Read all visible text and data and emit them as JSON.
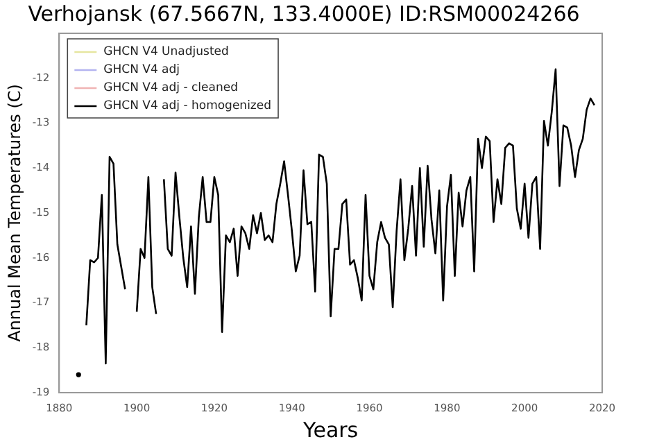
{
  "chart_data": {
    "type": "line",
    "title": "Verhojansk (67.5667N, 133.4000E) ID:RSM00024266",
    "xlabel": "Years",
    "ylabel": "Annual Mean Temperatures (C)",
    "x": [
      1885,
      1886,
      1887,
      1888,
      1889,
      1890,
      1891,
      1892,
      1893,
      1894,
      1895,
      1896,
      1897,
      1898,
      1899,
      1900,
      1901,
      1902,
      1903,
      1904,
      1905,
      1906,
      1907,
      1908,
      1909,
      1910,
      1911,
      1912,
      1913,
      1914,
      1915,
      1916,
      1917,
      1918,
      1919,
      1920,
      1921,
      1922,
      1923,
      1924,
      1925,
      1926,
      1927,
      1928,
      1929,
      1930,
      1931,
      1932,
      1933,
      1934,
      1935,
      1936,
      1937,
      1938,
      1939,
      1940,
      1941,
      1942,
      1943,
      1944,
      1945,
      1946,
      1947,
      1948,
      1949,
      1950,
      1951,
      1952,
      1953,
      1954,
      1955,
      1956,
      1957,
      1958,
      1959,
      1960,
      1961,
      1962,
      1963,
      1964,
      1965,
      1966,
      1967,
      1968,
      1969,
      1970,
      1971,
      1972,
      1973,
      1974,
      1975,
      1976,
      1977,
      1978,
      1979,
      1980,
      1981,
      1982,
      1983,
      1984,
      1985,
      1986,
      1987,
      1988,
      1989,
      1990,
      1991,
      1992,
      1993,
      1994,
      1995,
      1996,
      1997,
      1998,
      1999,
      2000,
      2001,
      2002,
      2003,
      2004,
      2005,
      2006,
      2007,
      2008,
      2009,
      2010,
      2011,
      2012,
      2013,
      2014,
      2015,
      2016,
      2017,
      2018
    ],
    "series": [
      {
        "name": "GHCN V4 Unadjusted",
        "color": "#e6e6a0",
        "values": [
          null,
          null,
          null,
          null,
          null,
          null,
          null,
          null,
          null,
          null,
          null,
          null,
          null,
          null,
          null,
          null,
          null,
          null,
          null,
          null,
          null,
          null,
          null,
          null,
          null,
          null,
          null,
          null,
          null,
          null,
          null,
          null,
          null,
          null,
          null,
          null,
          null,
          null,
          null,
          null,
          null,
          null,
          null,
          null,
          null,
          null,
          null,
          null,
          null,
          null,
          null,
          null,
          null,
          null,
          null,
          null,
          null,
          null,
          null,
          null,
          null,
          null,
          null,
          null,
          null,
          null,
          null,
          null,
          null,
          null,
          null,
          null,
          null,
          null,
          null,
          null,
          null,
          null,
          null,
          null,
          null,
          null,
          null,
          null,
          null,
          null,
          null,
          null,
          null,
          null,
          null,
          null,
          null,
          null,
          null,
          null,
          null,
          null,
          null,
          null,
          null,
          null,
          null,
          null,
          null,
          null,
          null,
          null,
          null,
          null,
          null,
          null,
          null,
          null,
          null,
          null,
          null,
          null,
          null,
          null,
          null,
          null,
          null,
          null,
          null,
          null,
          null,
          null,
          null,
          null,
          null,
          null,
          null,
          null
        ]
      },
      {
        "name": "GHCN V4 adj",
        "color": "#b4b4f0",
        "values": [
          null,
          null,
          null,
          null,
          null,
          null,
          null,
          null,
          null,
          null,
          null,
          null,
          null,
          null,
          null,
          null,
          null,
          null,
          null,
          null,
          null,
          null,
          null,
          null,
          null,
          null,
          null,
          null,
          null,
          null,
          null,
          null,
          null,
          null,
          null,
          null,
          null,
          null,
          null,
          null,
          null,
          null,
          null,
          null,
          null,
          null,
          null,
          null,
          null,
          null,
          null,
          null,
          null,
          null,
          null,
          null,
          null,
          null,
          null,
          null,
          null,
          null,
          null,
          null,
          null,
          null,
          null,
          null,
          null,
          null,
          null,
          null,
          null,
          null,
          null,
          null,
          null,
          null,
          null,
          null,
          null,
          null,
          null,
          null,
          null,
          null,
          null,
          null,
          null,
          null,
          null,
          null,
          null,
          null,
          null,
          null,
          null,
          null,
          null,
          null,
          null,
          null,
          null,
          null,
          null,
          null,
          null,
          null,
          null,
          null,
          null,
          null,
          null,
          null,
          null,
          null,
          null,
          null,
          null,
          null,
          null,
          null,
          null,
          null,
          null,
          null,
          null,
          null,
          null,
          null,
          null,
          null,
          null,
          null
        ]
      },
      {
        "name": "GHCN V4 adj - cleaned",
        "color": "#f0b4b4",
        "values": [
          null,
          null,
          null,
          null,
          null,
          null,
          null,
          null,
          null,
          null,
          null,
          null,
          null,
          null,
          null,
          null,
          null,
          null,
          null,
          null,
          null,
          null,
          null,
          null,
          null,
          null,
          null,
          null,
          null,
          null,
          null,
          null,
          null,
          null,
          null,
          null,
          null,
          null,
          null,
          null,
          null,
          null,
          null,
          null,
          null,
          null,
          null,
          null,
          null,
          null,
          null,
          null,
          null,
          null,
          null,
          null,
          null,
          null,
          null,
          null,
          null,
          null,
          null,
          null,
          null,
          null,
          null,
          null,
          null,
          null,
          null,
          null,
          null,
          null,
          null,
          null,
          null,
          null,
          null,
          null,
          null,
          null,
          null,
          null,
          null,
          null,
          null,
          null,
          null,
          null,
          null,
          null,
          null,
          null,
          null,
          null,
          null,
          null,
          null,
          null,
          null,
          null,
          null,
          null,
          null,
          null,
          null,
          null,
          null,
          null,
          null,
          null,
          null,
          null,
          null,
          null,
          null,
          null,
          null,
          null,
          null,
          null,
          null,
          null,
          null,
          null,
          null,
          null,
          null,
          null,
          null,
          null,
          null,
          null
        ]
      },
      {
        "name": "GHCN V4 adj - homogenized",
        "color": "#000000",
        "values": [
          -18.6,
          null,
          -17.5,
          -16.05,
          -16.1,
          -16.0,
          -14.6,
          -18.35,
          -13.75,
          -13.9,
          -15.7,
          -16.2,
          -16.7,
          null,
          null,
          -17.2,
          -15.8,
          -16.0,
          -14.2,
          -16.65,
          -17.25,
          null,
          -14.25,
          -15.8,
          -15.95,
          -14.1,
          -15.1,
          -16.0,
          -16.65,
          -15.3,
          -16.8,
          -15.1,
          -14.2,
          -15.2,
          -15.2,
          -14.2,
          -14.6,
          -17.65,
          -15.5,
          -15.65,
          -15.35,
          -16.4,
          -15.3,
          -15.45,
          -15.8,
          -15.05,
          -15.45,
          -15.0,
          -15.6,
          -15.5,
          -15.65,
          -14.8,
          -14.35,
          -13.85,
          -14.6,
          -15.4,
          -16.3,
          -15.95,
          -14.05,
          -15.25,
          -15.2,
          -16.75,
          -13.7,
          -13.75,
          -14.35,
          -17.3,
          -15.8,
          -15.8,
          -14.8,
          -14.7,
          -16.15,
          -16.05,
          -16.45,
          -16.95,
          -14.6,
          -16.4,
          -16.7,
          -15.65,
          -15.2,
          -15.55,
          -15.7,
          -17.1,
          -15.4,
          -14.25,
          -16.05,
          -15.35,
          -14.4,
          -15.95,
          -14.0,
          -15.75,
          -13.95,
          -15.15,
          -15.9,
          -14.5,
          -16.95,
          -14.85,
          -14.15,
          -16.4,
          -14.55,
          -15.3,
          -14.5,
          -14.2,
          -16.3,
          -13.35,
          -14.0,
          -13.3,
          -13.4,
          -15.2,
          -14.25,
          -14.8,
          -13.55,
          -13.45,
          -13.5,
          -14.9,
          -15.35,
          -14.35,
          -15.55,
          -14.35,
          -14.2,
          -15.8,
          -12.95,
          -13.5,
          -12.75,
          -11.8,
          -14.4,
          -13.05,
          -13.1,
          -13.5,
          -14.2,
          -13.6,
          -13.35,
          -12.7,
          -12.45,
          -12.6
        ]
      }
    ],
    "xlim": [
      1880,
      2020
    ],
    "xticks": [
      1880,
      1900,
      1920,
      1940,
      1960,
      1980,
      2000,
      2020
    ],
    "ylim": [
      -19,
      -11
    ],
    "yticks": [
      -19,
      -18,
      -17,
      -16,
      -15,
      -14,
      -13,
      -12
    ],
    "grid": false,
    "legend": "top left",
    "marker": "none",
    "line_style": "solid"
  }
}
